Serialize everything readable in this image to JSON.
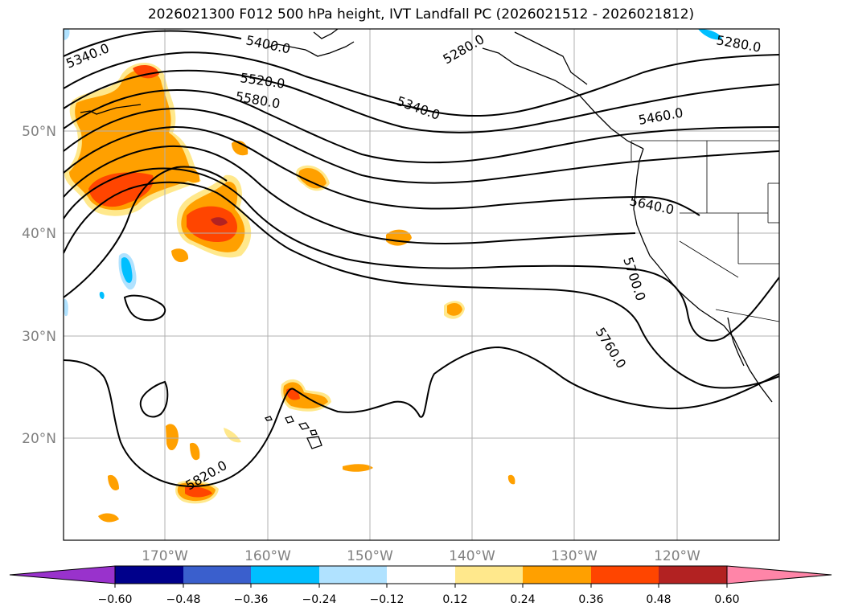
{
  "title": "2026021300 F012 500 hPa height, IVT Landfall PC (2026021512 - 2026021812)",
  "map": {
    "lat_labels": [
      "50°N",
      "40°N",
      "30°N",
      "20°N"
    ],
    "lon_labels": [
      "170°W",
      "160°W",
      "150°W",
      "140°W",
      "130°W",
      "120°W"
    ],
    "contour_labels": [
      "5340.0",
      "5400.0",
      "5520.0",
      "5580.0",
      "5280.0",
      "5340.0",
      "5460.0",
      "5640.0",
      "5700.0",
      "5760.0",
      "5820.0",
      "5280.0"
    ]
  },
  "colorbar": {
    "ticks": [
      "−0.60",
      "−0.48",
      "−0.36",
      "−0.24",
      "−0.12",
      "0.12",
      "0.24",
      "0.36",
      "0.48",
      "0.60"
    ],
    "colors": [
      "#9932CC",
      "#00008B",
      "#3A5FCD",
      "#00BFFF",
      "#B0E2FF",
      "#FFFFFF",
      "#FFE88C",
      "#FFA000",
      "#FF4500",
      "#B22222",
      "#FF85A8"
    ]
  }
}
